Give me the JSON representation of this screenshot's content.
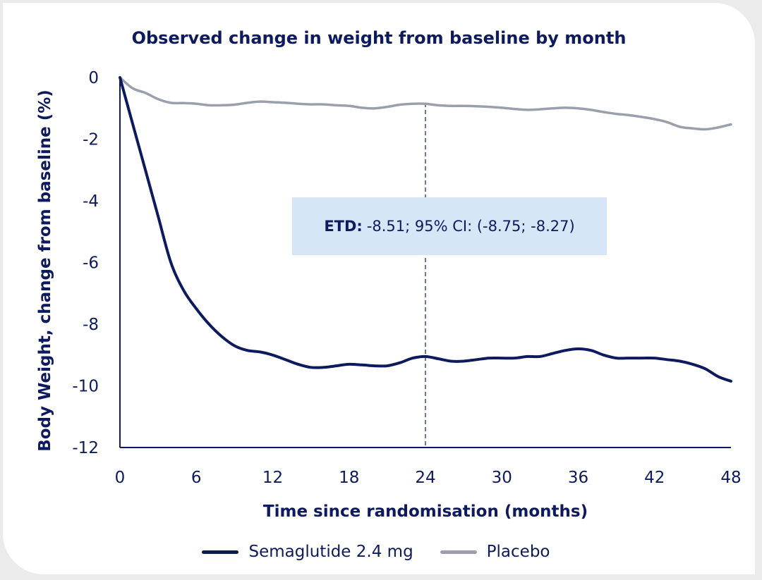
{
  "chart_data": {
    "type": "line",
    "title": "Observed change in weight from baseline by month",
    "xlabel": "Time since randomisation (months)",
    "ylabel": "Body Weight, change from baseline (%)",
    "xlim": [
      0,
      48
    ],
    "ylim": [
      -12,
      0
    ],
    "x_ticks": [
      "0",
      "6",
      "12",
      "18",
      "24",
      "30",
      "36",
      "42",
      "48"
    ],
    "y_ticks": [
      "0",
      "-2",
      "-4",
      "-6",
      "-8",
      "-10",
      "-12"
    ],
    "grid": false,
    "legend_position": "bottom",
    "series": [
      {
        "name": "Semaglutide 2.4 mg",
        "color": "#0d1b5e",
        "x": [
          0,
          1,
          2,
          3,
          4,
          5,
          6,
          7,
          8,
          9,
          10,
          11,
          12,
          13,
          14,
          15,
          16,
          17,
          18,
          19,
          20,
          21,
          22,
          23,
          24,
          25,
          26,
          27,
          28,
          29,
          30,
          31,
          32,
          33,
          34,
          35,
          36,
          37,
          38,
          39,
          40,
          41,
          42,
          43,
          44,
          45,
          46,
          47,
          48
        ],
        "values": [
          0,
          -1.5,
          -3.0,
          -4.5,
          -6.0,
          -6.9,
          -7.5,
          -8.0,
          -8.4,
          -8.7,
          -8.85,
          -8.9,
          -9.0,
          -9.15,
          -9.3,
          -9.4,
          -9.4,
          -9.35,
          -9.3,
          -9.32,
          -9.35,
          -9.35,
          -9.25,
          -9.1,
          -9.05,
          -9.12,
          -9.2,
          -9.2,
          -9.15,
          -9.1,
          -9.1,
          -9.1,
          -9.05,
          -9.05,
          -8.95,
          -8.85,
          -8.8,
          -8.85,
          -9.0,
          -9.1,
          -9.1,
          -9.1,
          -9.1,
          -9.15,
          -9.2,
          -9.3,
          -9.45,
          -9.7,
          -9.85
        ]
      },
      {
        "name": "Placebo",
        "color": "#9aa0ab",
        "x": [
          0,
          1,
          2,
          3,
          4,
          5,
          6,
          7,
          8,
          9,
          10,
          11,
          12,
          13,
          14,
          15,
          16,
          17,
          18,
          19,
          20,
          21,
          22,
          23,
          24,
          25,
          26,
          27,
          28,
          29,
          30,
          31,
          32,
          33,
          34,
          35,
          36,
          37,
          38,
          39,
          40,
          41,
          42,
          43,
          44,
          45,
          46,
          47,
          48
        ],
        "values": [
          0,
          -0.35,
          -0.5,
          -0.7,
          -0.82,
          -0.83,
          -0.85,
          -0.9,
          -0.9,
          -0.88,
          -0.82,
          -0.78,
          -0.8,
          -0.82,
          -0.85,
          -0.87,
          -0.87,
          -0.9,
          -0.92,
          -0.98,
          -1.0,
          -0.95,
          -0.88,
          -0.85,
          -0.85,
          -0.9,
          -0.92,
          -0.92,
          -0.93,
          -0.95,
          -0.98,
          -1.02,
          -1.05,
          -1.03,
          -1.0,
          -0.98,
          -1.0,
          -1.05,
          -1.12,
          -1.18,
          -1.22,
          -1.28,
          -1.35,
          -1.45,
          -1.6,
          -1.65,
          -1.68,
          -1.62,
          -1.52
        ]
      }
    ],
    "reference_line": {
      "x": 24,
      "style": "dashed"
    },
    "annotation": {
      "label": "ETD:",
      "text": "-8.51; 95% CI: (-8.75; -8.27)"
    }
  }
}
